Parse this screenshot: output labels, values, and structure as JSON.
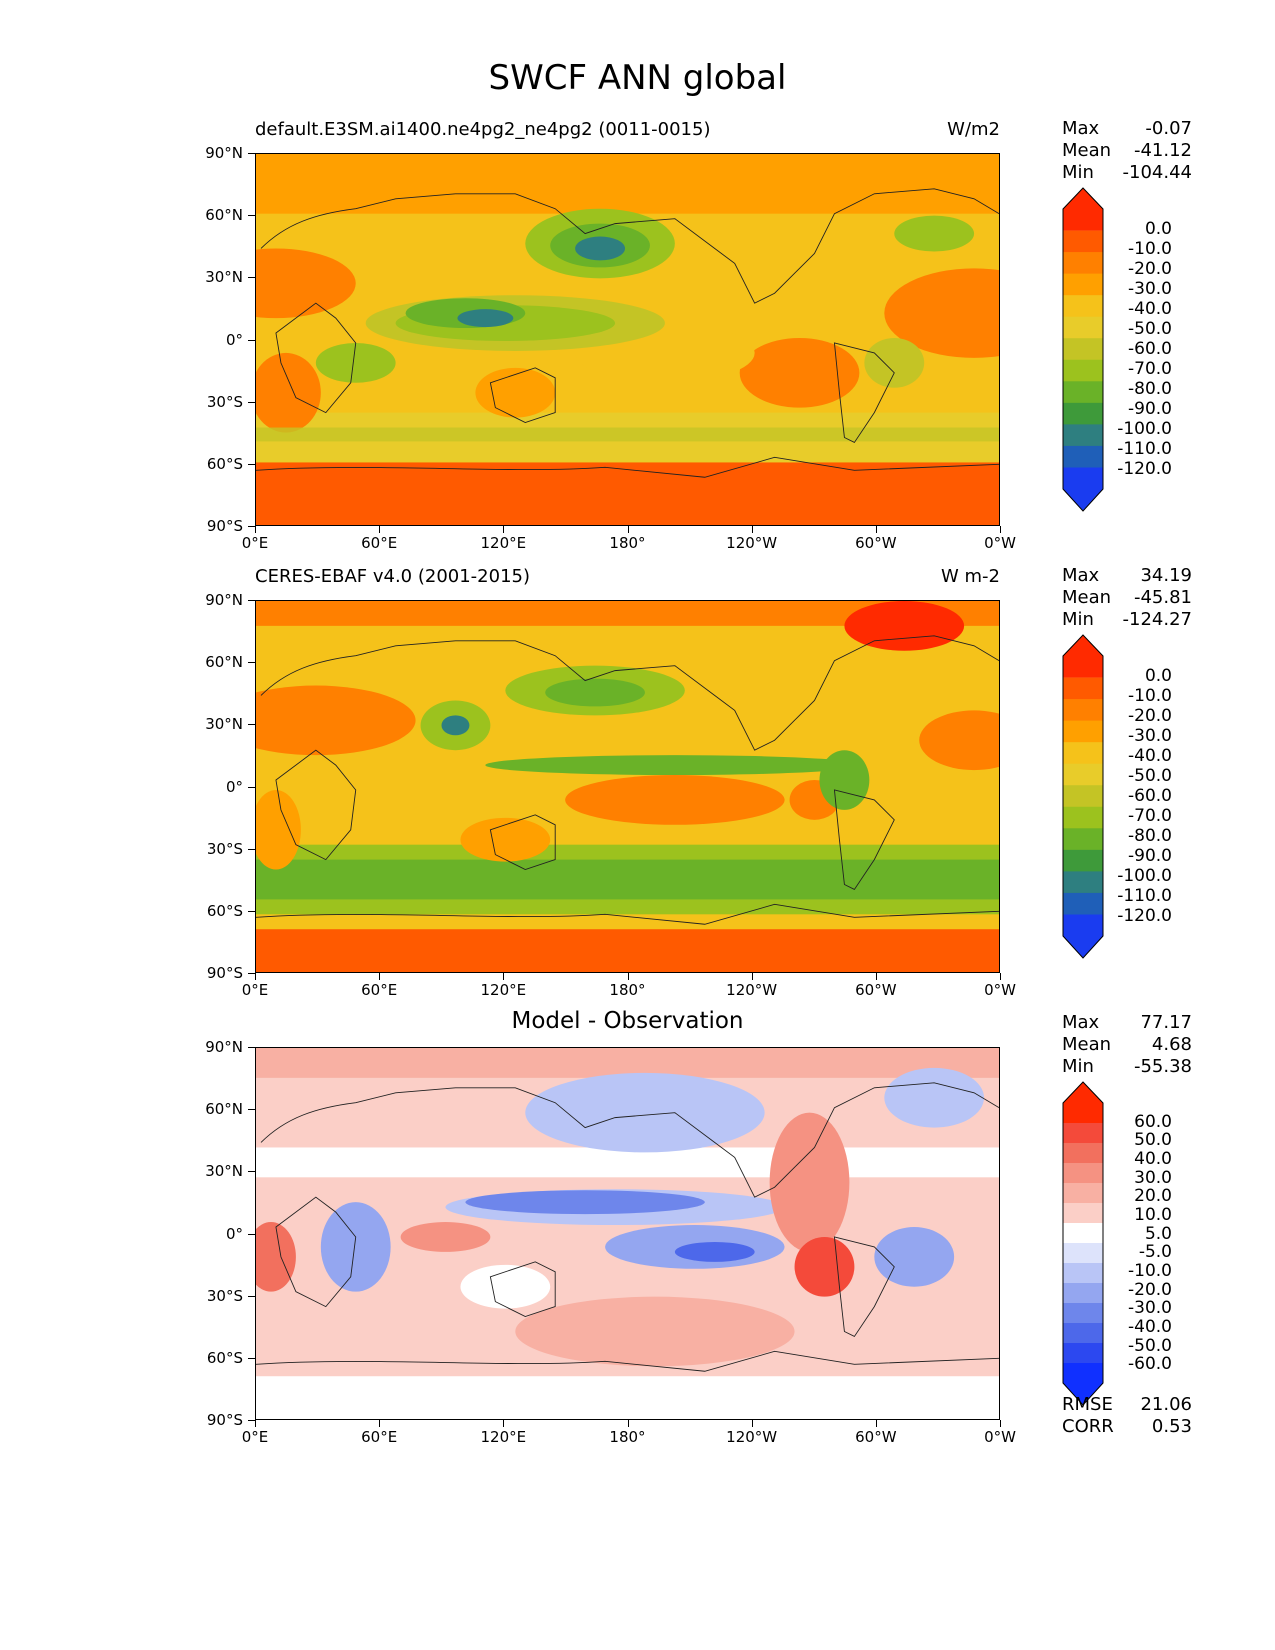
{
  "figure": {
    "title": "SWCF ANN global"
  },
  "axes": {
    "lat_ticks": [
      "90°N",
      "60°N",
      "30°N",
      "0°",
      "30°S",
      "60°S",
      "90°S"
    ],
    "lon_ticks": [
      "0°E",
      "60°E",
      "120°E",
      "180°",
      "120°W",
      "60°W",
      "0°W"
    ]
  },
  "panels": [
    {
      "title_left": "default.E3SM.ai1400.ne4pg2_ne4pg2 (0011-0015)",
      "title_right": "W/m2",
      "stats": {
        "max_label": "Max",
        "max": "-0.07",
        "mean_label": "Mean",
        "mean": "-41.12",
        "min_label": "Min",
        "min": "-104.44"
      },
      "colorbar_levels": [
        "0.0",
        "-10.0",
        "-20.0",
        "-30.0",
        "-40.0",
        "-50.0",
        "-60.0",
        "-70.0",
        "-80.0",
        "-90.0",
        "-100.0",
        "-110.0",
        "-120.0"
      ]
    },
    {
      "title_left": "CERES-EBAF v4.0 (2001-2015)",
      "title_right": "W m-2",
      "stats": {
        "max_label": "Max",
        "max": "34.19",
        "mean_label": "Mean",
        "mean": "-45.81",
        "min_label": "Min",
        "min": "-124.27"
      },
      "colorbar_levels": [
        "0.0",
        "-10.0",
        "-20.0",
        "-30.0",
        "-40.0",
        "-50.0",
        "-60.0",
        "-70.0",
        "-80.0",
        "-90.0",
        "-100.0",
        "-110.0",
        "-120.0"
      ]
    },
    {
      "title_center": "Model - Observation",
      "stats": {
        "max_label": "Max",
        "max": "77.17",
        "mean_label": "Mean",
        "mean": "4.68",
        "min_label": "Min",
        "min": "-55.38"
      },
      "colorbar_levels": [
        "60.0",
        "50.0",
        "40.0",
        "30.0",
        "20.0",
        "10.0",
        "5.0",
        "-5.0",
        "-10.0",
        "-20.0",
        "-30.0",
        "-40.0",
        "-50.0",
        "-60.0"
      ],
      "metrics": {
        "rmse_label": "RMSE",
        "rmse": "21.06",
        "corr_label": "CORR",
        "corr": "0.53"
      }
    }
  ],
  "chart_data": [
    {
      "type": "heatmap",
      "title": "default.E3SM.ai1400.ne4pg2_ne4pg2 (0011-0015)",
      "variable": "SWCF",
      "season": "ANN",
      "units": "W/m2",
      "x_ticks": [
        "0°E",
        "60°E",
        "120°E",
        "180°",
        "120°W",
        "60°W",
        "0°W"
      ],
      "y_ticks": [
        "90°N",
        "60°N",
        "30°N",
        "0°",
        "30°S",
        "60°S",
        "90°S"
      ],
      "colorbar": {
        "levels": [
          0,
          -10,
          -20,
          -30,
          -40,
          -50,
          -60,
          -70,
          -80,
          -90,
          -100,
          -110,
          -120
        ],
        "colors": [
          "#ff2a00",
          "#ff5a00",
          "#ff8000",
          "#ffa000",
          "#f5c21a",
          "#e8cc2a",
          "#c4c425",
          "#9cc21e",
          "#6ab228",
          "#3e9a3a",
          "#2e7f80",
          "#1f5fb8",
          "#1a3cf0"
        ]
      },
      "stats": {
        "max": -0.07,
        "mean": -41.12,
        "min": -104.44
      }
    },
    {
      "type": "heatmap",
      "title": "CERES-EBAF v4.0 (2001-2015)",
      "units": "W m-2",
      "x_ticks": [
        "0°E",
        "60°E",
        "120°E",
        "180°",
        "120°W",
        "60°W",
        "0°W"
      ],
      "y_ticks": [
        "90°N",
        "60°N",
        "30°N",
        "0°",
        "30°S",
        "60°S",
        "90°S"
      ],
      "colorbar": {
        "levels": [
          0,
          -10,
          -20,
          -30,
          -40,
          -50,
          -60,
          -70,
          -80,
          -90,
          -100,
          -110,
          -120
        ]
      },
      "stats": {
        "max": 34.19,
        "mean": -45.81,
        "min": -124.27
      }
    },
    {
      "type": "heatmap",
      "title": "Model - Observation",
      "x_ticks": [
        "0°E",
        "60°E",
        "120°E",
        "180°",
        "120°W",
        "60°W",
        "0°W"
      ],
      "y_ticks": [
        "90°N",
        "60°N",
        "30°N",
        "0°",
        "30°S",
        "60°S",
        "90°S"
      ],
      "colorbar": {
        "levels": [
          60,
          50,
          40,
          30,
          20,
          10,
          5,
          -5,
          -10,
          -20,
          -30,
          -40,
          -50,
          -60
        ],
        "colors": [
          "#ff2a00",
          "#f44a3a",
          "#f2705e",
          "#f59282",
          "#f8b0a3",
          "#fbcfc7",
          "#ffffff",
          "#dde3fb",
          "#b9c5f6",
          "#94a6f0",
          "#6e86eb",
          "#4d68ea",
          "#2c48f0",
          "#1030ff"
        ]
      },
      "stats": {
        "max": 77.17,
        "mean": 4.68,
        "min": -55.38
      },
      "rmse": 21.06,
      "corr": 0.53
    }
  ]
}
